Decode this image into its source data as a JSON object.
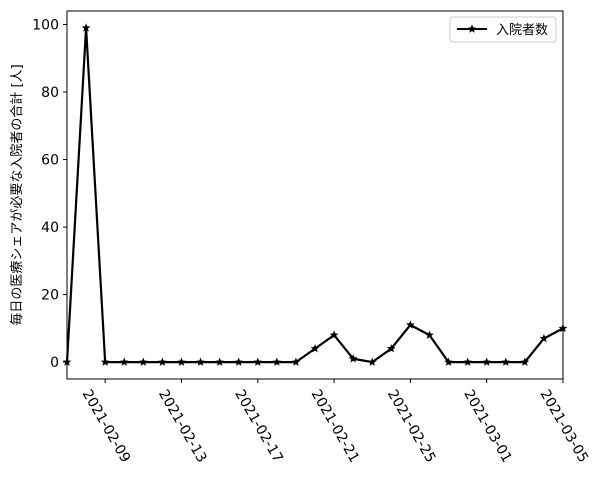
{
  "chart_data": {
    "type": "line",
    "title": "",
    "xlabel": "",
    "ylabel": "毎日の医療シェアが必要な入院者の合計 [人]",
    "x": [
      "2021-02-07",
      "2021-02-08",
      "2021-02-09",
      "2021-02-10",
      "2021-02-11",
      "2021-02-12",
      "2021-02-13",
      "2021-02-14",
      "2021-02-15",
      "2021-02-16",
      "2021-02-17",
      "2021-02-18",
      "2021-02-19",
      "2021-02-20",
      "2021-02-21",
      "2021-02-22",
      "2021-02-23",
      "2021-02-24",
      "2021-02-25",
      "2021-02-26",
      "2021-02-27",
      "2021-02-28",
      "2021-03-01",
      "2021-03-02",
      "2021-03-03",
      "2021-03-04",
      "2021-03-05"
    ],
    "series": [
      {
        "name": "入院者数",
        "color": "#000000",
        "marker": "star",
        "values": [
          0,
          99,
          0,
          0,
          0,
          0,
          0,
          0,
          0,
          0,
          0,
          0,
          0,
          4,
          8,
          1,
          0,
          4,
          11,
          8,
          0,
          0,
          0,
          0,
          0,
          7,
          10
        ]
      }
    ],
    "xticks": [
      "2021-02-09",
      "2021-02-13",
      "2021-02-17",
      "2021-02-21",
      "2021-02-25",
      "2021-03-01",
      "2021-03-05"
    ],
    "xtick_indices": [
      2,
      6,
      10,
      14,
      18,
      22,
      26
    ],
    "xlim_index": [
      0,
      26
    ],
    "yticks": [
      0,
      20,
      40,
      60,
      80,
      100
    ],
    "ylim": [
      -5,
      104
    ],
    "grid": false,
    "legend_position": "top-right"
  }
}
